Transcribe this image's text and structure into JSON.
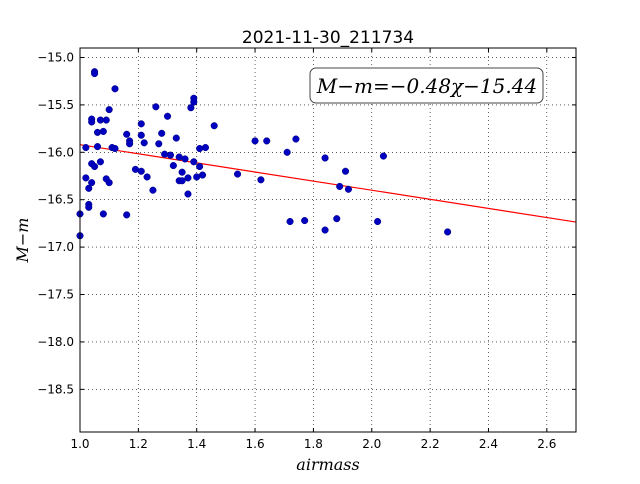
{
  "chart_data": {
    "type": "scatter",
    "title": "2021-11-30_211734",
    "xlabel": "airmass",
    "ylabel": "M−m",
    "xlim": [
      1.0,
      2.7
    ],
    "ylim": [
      -18.95,
      -14.9
    ],
    "xticks": [
      1.0,
      1.2,
      1.4,
      1.6,
      1.8,
      2.0,
      2.2,
      2.4,
      2.6
    ],
    "xtick_labels": [
      "1.0",
      "1.2",
      "1.4",
      "1.6",
      "1.8",
      "2.0",
      "2.2",
      "2.4",
      "2.6"
    ],
    "yticks": [
      -15.0,
      -15.5,
      -16.0,
      -16.5,
      -17.0,
      -17.5,
      -18.0,
      -18.5
    ],
    "ytick_labels": [
      "−15.0",
      "−15.5",
      "−16.0",
      "−16.5",
      "−17.0",
      "−17.5",
      "−18.0",
      "−18.5"
    ],
    "grid": true,
    "annotation": "M−m=−0.48χ−15.44",
    "annotation_position": "top-right",
    "fit_line": {
      "slope": -0.48,
      "intercept": -15.44,
      "color": "#ff0000"
    },
    "point_color": "#0000bf",
    "points": [
      [
        1.0,
        -16.65
      ],
      [
        1.0,
        -16.88
      ],
      [
        1.02,
        -15.95
      ],
      [
        1.02,
        -16.27
      ],
      [
        1.03,
        -16.38
      ],
      [
        1.03,
        -16.55
      ],
      [
        1.03,
        -16.58
      ],
      [
        1.04,
        -15.65
      ],
      [
        1.04,
        -15.68
      ],
      [
        1.04,
        -16.12
      ],
      [
        1.04,
        -16.32
      ],
      [
        1.05,
        -15.15
      ],
      [
        1.05,
        -15.17
      ],
      [
        1.05,
        -16.15
      ],
      [
        1.06,
        -15.79
      ],
      [
        1.06,
        -15.94
      ],
      [
        1.07,
        -16.1
      ],
      [
        1.07,
        -15.66
      ],
      [
        1.08,
        -15.78
      ],
      [
        1.08,
        -16.65
      ],
      [
        1.09,
        -15.66
      ],
      [
        1.09,
        -16.28
      ],
      [
        1.1,
        -15.55
      ],
      [
        1.1,
        -16.32
      ],
      [
        1.11,
        -15.95
      ],
      [
        1.12,
        -15.33
      ],
      [
        1.12,
        -15.96
      ],
      [
        1.16,
        -15.81
      ],
      [
        1.16,
        -16.66
      ],
      [
        1.17,
        -15.88
      ],
      [
        1.17,
        -15.91
      ],
      [
        1.19,
        -16.18
      ],
      [
        1.21,
        -15.7
      ],
      [
        1.21,
        -15.82
      ],
      [
        1.21,
        -16.2
      ],
      [
        1.22,
        -15.9
      ],
      [
        1.23,
        -16.26
      ],
      [
        1.25,
        -16.4
      ],
      [
        1.26,
        -15.52
      ],
      [
        1.27,
        -15.91
      ],
      [
        1.28,
        -15.8
      ],
      [
        1.29,
        -16.02
      ],
      [
        1.3,
        -15.62
      ],
      [
        1.31,
        -16.03
      ],
      [
        1.32,
        -16.14
      ],
      [
        1.33,
        -15.85
      ],
      [
        1.34,
        -16.3
      ],
      [
        1.34,
        -16.05
      ],
      [
        1.35,
        -16.21
      ],
      [
        1.35,
        -16.3
      ],
      [
        1.36,
        -16.07
      ],
      [
        1.37,
        -16.27
      ],
      [
        1.37,
        -16.44
      ],
      [
        1.38,
        -15.53
      ],
      [
        1.39,
        -15.43
      ],
      [
        1.39,
        -15.47
      ],
      [
        1.39,
        -16.1
      ],
      [
        1.4,
        -16.26
      ],
      [
        1.41,
        -15.96
      ],
      [
        1.41,
        -16.15
      ],
      [
        1.42,
        -16.24
      ],
      [
        1.43,
        -15.95
      ],
      [
        1.46,
        -15.72
      ],
      [
        1.54,
        -16.23
      ],
      [
        1.6,
        -15.88
      ],
      [
        1.62,
        -16.29
      ],
      [
        1.64,
        -15.88
      ],
      [
        1.71,
        -16.0
      ],
      [
        1.72,
        -16.73
      ],
      [
        1.74,
        -15.86
      ],
      [
        1.77,
        -16.72
      ],
      [
        1.84,
        -16.06
      ],
      [
        1.84,
        -16.82
      ],
      [
        1.88,
        -16.7
      ],
      [
        1.89,
        -16.36
      ],
      [
        1.91,
        -16.2
      ],
      [
        1.92,
        -16.39
      ],
      [
        2.02,
        -16.73
      ],
      [
        2.04,
        -16.04
      ],
      [
        2.26,
        -16.84
      ]
    ]
  }
}
